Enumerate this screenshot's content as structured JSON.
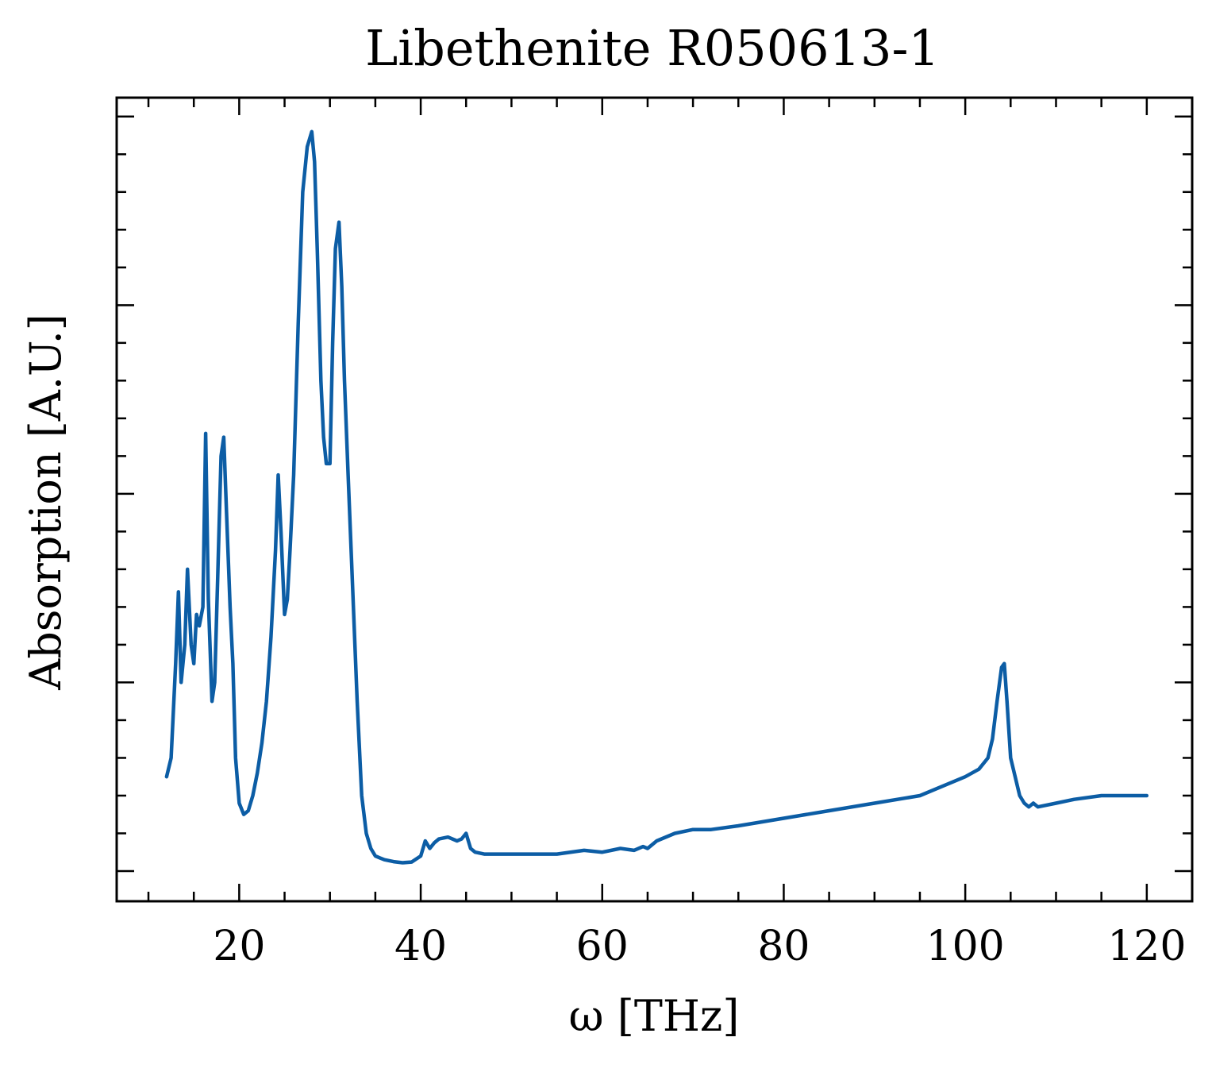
{
  "chart_data": {
    "type": "line",
    "title": "Libethenite R050613-1",
    "xlabel": "ω [THz]",
    "ylabel": "Absorption [A.U.]",
    "xlim": [
      6.5,
      125
    ],
    "ylim": [
      -0.08,
      2.05
    ],
    "xticks": [
      20,
      40,
      60,
      80,
      100,
      120
    ],
    "xtick_labels": [
      "20",
      "40",
      "60",
      "80",
      "100",
      "120"
    ],
    "yticks": [
      0,
      0.5,
      1.0,
      1.5,
      2.0
    ],
    "ytick_labels_shown": false,
    "grid": false,
    "legend": "none",
    "line_color": "#0C5DA5",
    "series": [
      {
        "x": [
          12.0,
          12.5,
          13.0,
          13.3,
          13.6,
          14.0,
          14.3,
          14.7,
          15.0,
          15.3,
          15.6,
          16.0,
          16.3,
          16.6,
          17.0,
          17.3,
          17.6,
          18.0,
          18.3,
          18.6,
          19.0,
          19.3,
          19.6,
          20.0,
          20.5,
          21.0,
          21.5,
          22.0,
          22.5,
          23.0,
          23.5,
          24.0,
          24.3,
          24.6,
          25.0,
          25.3,
          25.6,
          26.0,
          26.5,
          27.0,
          27.5,
          28.0,
          28.3,
          28.6,
          29.0,
          29.3,
          29.6,
          30.0,
          30.3,
          30.6,
          31.0,
          31.3,
          31.6,
          32.0,
          32.5,
          33.0,
          33.5,
          34.0,
          34.5,
          35.0,
          35.5,
          36.0,
          37.0,
          38.0,
          39.0,
          40.0,
          40.5,
          41.0,
          41.5,
          42.0,
          43.0,
          44.0,
          44.5,
          45.0,
          45.5,
          46.0,
          47.0,
          50.0,
          55.0,
          58.0,
          60.0,
          62.0,
          63.5,
          64.5,
          65.0,
          66.0,
          68.0,
          70.0,
          72.0,
          75.0,
          80.0,
          85.0,
          90.0,
          95.0,
          98.0,
          100.0,
          101.5,
          102.5,
          103.0,
          103.5,
          104.0,
          104.3,
          104.6,
          105.0,
          105.5,
          106.0,
          106.5,
          107.0,
          107.5,
          108.0,
          110.0,
          112.0,
          115.0,
          118.0,
          120.0
        ],
        "y": [
          0.25,
          0.3,
          0.55,
          0.74,
          0.5,
          0.6,
          0.8,
          0.6,
          0.55,
          0.68,
          0.65,
          0.7,
          1.16,
          0.72,
          0.45,
          0.5,
          0.75,
          1.1,
          1.15,
          0.95,
          0.7,
          0.55,
          0.3,
          0.18,
          0.15,
          0.16,
          0.2,
          0.26,
          0.34,
          0.45,
          0.62,
          0.85,
          1.05,
          0.9,
          0.68,
          0.72,
          0.85,
          1.05,
          1.45,
          1.8,
          1.92,
          1.96,
          1.88,
          1.65,
          1.3,
          1.15,
          1.08,
          1.08,
          1.4,
          1.65,
          1.72,
          1.55,
          1.3,
          1.05,
          0.75,
          0.45,
          0.2,
          0.1,
          0.06,
          0.04,
          0.035,
          0.03,
          0.025,
          0.022,
          0.024,
          0.04,
          0.08,
          0.06,
          0.075,
          0.085,
          0.09,
          0.08,
          0.085,
          0.1,
          0.06,
          0.05,
          0.045,
          0.045,
          0.045,
          0.055,
          0.05,
          0.06,
          0.055,
          0.065,
          0.06,
          0.08,
          0.1,
          0.11,
          0.11,
          0.12,
          0.14,
          0.16,
          0.18,
          0.2,
          0.23,
          0.25,
          0.27,
          0.3,
          0.35,
          0.45,
          0.54,
          0.55,
          0.45,
          0.3,
          0.25,
          0.2,
          0.18,
          0.17,
          0.18,
          0.17,
          0.18,
          0.19,
          0.2,
          0.2,
          0.2
        ]
      }
    ]
  }
}
